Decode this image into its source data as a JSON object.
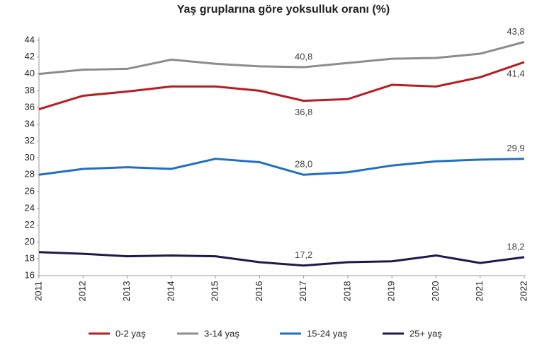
{
  "chart_data": {
    "type": "line",
    "title": "Yaş gruplarına göre yoksulluk oranı (%)",
    "categories": [
      "2011",
      "2012",
      "2013",
      "2014",
      "2015",
      "2016",
      "2017",
      "2018",
      "2019",
      "2020",
      "2021",
      "2022"
    ],
    "ylim": [
      16,
      44
    ],
    "yticks": [
      16,
      18,
      20,
      22,
      24,
      26,
      28,
      30,
      32,
      34,
      36,
      38,
      40,
      42,
      44
    ],
    "grid": false,
    "legend": "bottom",
    "series": [
      {
        "name": "0-2 yaş",
        "color": "#b81c22",
        "values": [
          35.8,
          37.4,
          37.9,
          38.5,
          38.5,
          38.0,
          36.8,
          37.0,
          38.7,
          38.5,
          39.6,
          41.4
        ],
        "value_labels": [
          null,
          null,
          null,
          null,
          null,
          null,
          "36,8",
          null,
          null,
          null,
          null,
          "41,4"
        ]
      },
      {
        "name": "3-14 yaş",
        "color": "#8c8c8c",
        "values": [
          40.0,
          40.5,
          40.6,
          41.7,
          41.2,
          40.9,
          40.8,
          41.3,
          41.8,
          41.9,
          42.4,
          43.8
        ],
        "value_labels": [
          null,
          null,
          null,
          null,
          null,
          null,
          "40,8",
          null,
          null,
          null,
          null,
          "43,8"
        ]
      },
      {
        "name": "15-24 yaş",
        "color": "#1f6fc5",
        "values": [
          28.0,
          28.7,
          28.9,
          28.7,
          29.9,
          29.5,
          28.0,
          28.3,
          29.1,
          29.6,
          29.8,
          29.9
        ],
        "value_labels": [
          null,
          null,
          null,
          null,
          null,
          null,
          "28,0",
          null,
          null,
          null,
          null,
          "29,9"
        ]
      },
      {
        "name": "25+ yaş",
        "color": "#1c1a4a",
        "values": [
          18.8,
          18.6,
          18.3,
          18.4,
          18.3,
          17.6,
          17.2,
          17.6,
          17.7,
          18.4,
          17.5,
          18.2
        ],
        "value_labels": [
          null,
          null,
          null,
          null,
          null,
          null,
          "17,2",
          null,
          null,
          null,
          null,
          "18,2"
        ]
      }
    ]
  }
}
